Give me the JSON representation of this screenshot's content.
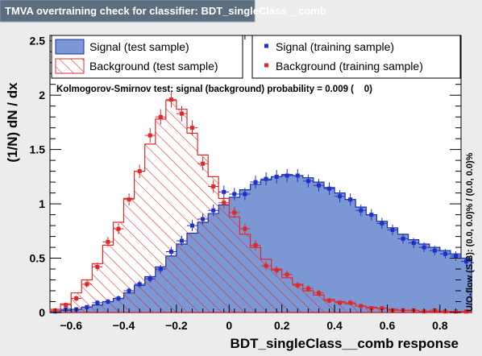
{
  "window_title": "TMVA overtraining check for classifier: BDT_singleClass__comb",
  "chart_data": {
    "type": "histogram",
    "xlabel": "BDT_singleClass__comb response",
    "ylabel": "(1/N) dN / dx",
    "xlim": [
      -0.68,
      0.88
    ],
    "ylim": [
      0,
      2.55
    ],
    "xticks": [
      -0.6,
      -0.4,
      -0.2,
      0,
      0.2,
      0.4,
      0.6,
      0.8
    ],
    "xtick_labels": [
      "−0.6",
      "−0.4",
      "−0.2",
      "0",
      "0.2",
      "0.4",
      "0.6",
      "0.8"
    ],
    "yticks": [
      0,
      0.5,
      1,
      1.5,
      2,
      2.5
    ],
    "ytick_labels": [
      "0",
      "0.5",
      "1",
      "1.5",
      "2",
      "2.5"
    ],
    "bin_low": -0.68,
    "bin_width": 0.04,
    "annotation": "Kolmogorov-Smirnov test: signal (background) probability = 0.009 (    0)",
    "side_label": "U/O-flow (S,B): (0.0, 0.0)% / (0.0, 0.0)%",
    "legend": {
      "signal_test": "Signal (test sample)",
      "background_test": "Background (test sample)",
      "signal_train": "Signal (training sample)",
      "background_train": "Background (training sample)"
    },
    "colors": {
      "signal_fill": "#7b97d4",
      "signal_line": "#1a32a8",
      "signal_marker": "#1f2fc8",
      "background": "#e02828"
    },
    "signal_test": [
      0,
      0.02,
      0.03,
      0.05,
      0.07,
      0.1,
      0.13,
      0.18,
      0.25,
      0.33,
      0.42,
      0.52,
      0.63,
      0.73,
      0.83,
      0.91,
      0.99,
      1.06,
      1.13,
      1.18,
      1.22,
      1.25,
      1.27,
      1.26,
      1.24,
      1.2,
      1.15,
      1.1,
      1.04,
      0.97,
      0.9,
      0.84,
      0.78,
      0.72,
      0.67,
      0.63,
      0.6,
      0.57,
      0.54,
      0.5
    ],
    "background_test": [
      0.03,
      0.08,
      0.18,
      0.3,
      0.45,
      0.62,
      0.83,
      1.05,
      1.3,
      1.55,
      1.78,
      1.95,
      1.87,
      1.65,
      1.45,
      1.25,
      1.05,
      0.88,
      0.72,
      0.6,
      0.49,
      0.4,
      0.32,
      0.26,
      0.2,
      0.16,
      0.12,
      0.1,
      0.08,
      0.06,
      0.05,
      0.04,
      0.03,
      0.02,
      0.02,
      0.01,
      0.01,
      0.01,
      0.01,
      0.01
    ],
    "signal_train": [
      0.01,
      0.03,
      0.03,
      0.05,
      0.09,
      0.1,
      0.13,
      0.2,
      0.26,
      0.31,
      0.4,
      0.56,
      0.66,
      0.8,
      0.86,
      0.94,
      1.11,
      1.09,
      1.09,
      1.2,
      1.23,
      1.25,
      1.26,
      1.26,
      1.21,
      1.17,
      1.14,
      1.07,
      1.04,
      0.94,
      0.9,
      0.82,
      0.76,
      0.68,
      0.64,
      0.6,
      0.57,
      0.54,
      0.52,
      0.47
    ],
    "background_train": [
      0.02,
      0.07,
      0.13,
      0.26,
      0.42,
      0.65,
      0.77,
      1.04,
      1.3,
      1.63,
      1.8,
      1.96,
      1.83,
      1.7,
      1.37,
      1.16,
      1.01,
      0.92,
      0.77,
      0.62,
      0.43,
      0.39,
      0.35,
      0.25,
      0.22,
      0.18,
      0.11,
      0.09,
      0.09,
      0.06,
      0.04,
      0.04,
      0.02,
      0.02,
      0.02,
      0.01,
      0.02,
      0.01,
      0.01,
      0.01
    ]
  }
}
